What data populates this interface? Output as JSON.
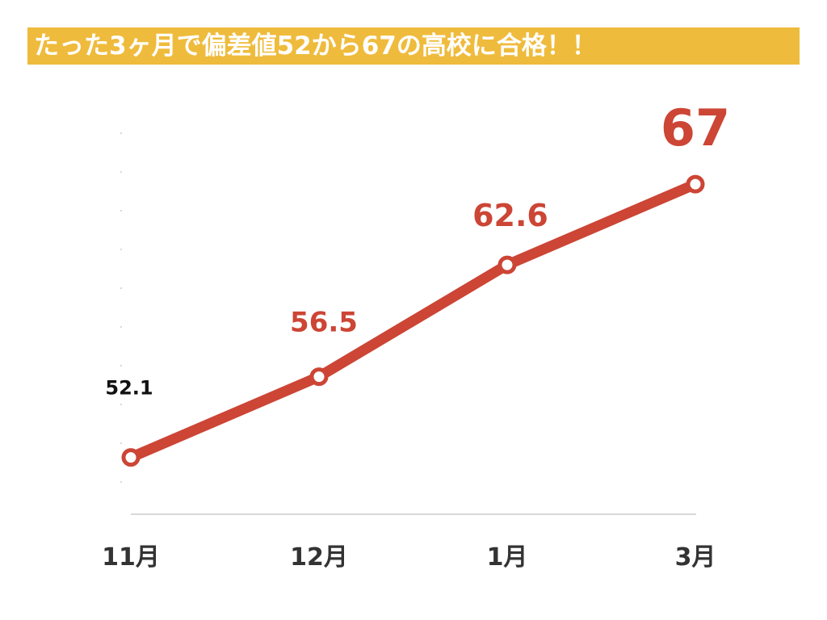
{
  "headline": "たった3ヶ月で偏差値52から67の高校に合格！！",
  "colors": {
    "banner": "#efbb3c",
    "banner_text": "#ffffff",
    "line": "#cc4535",
    "first_label": "#111111",
    "axis": "#cccccc",
    "tick_text": "#333333"
  },
  "chart_data": {
    "type": "line",
    "title": "",
    "xlabel": "",
    "ylabel": "",
    "categories": [
      "11月",
      "12月",
      "1月",
      "3月"
    ],
    "series": [
      {
        "values": [
          52.1,
          56.5,
          62.6,
          67
        ],
        "labels": [
          "52.1",
          "56.5",
          "62.6",
          "67"
        ]
      }
    ],
    "ylim": [
      49,
      70
    ],
    "grid": false,
    "legend": "none"
  }
}
